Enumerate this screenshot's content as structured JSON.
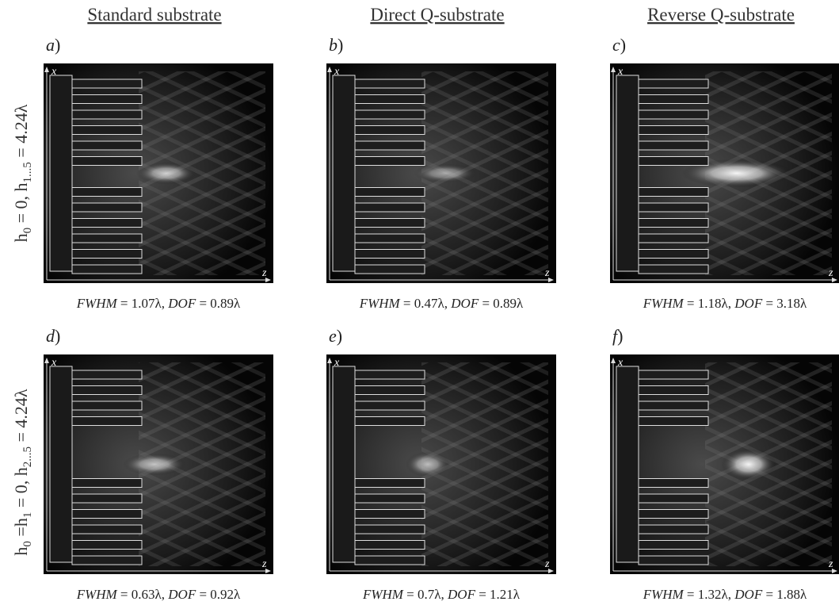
{
  "columns": [
    "Standard substrate",
    "Direct Q-substrate",
    "Reverse Q-substrate"
  ],
  "row_labels": [
    [
      "h",
      "0",
      " = 0, h",
      "1...5",
      " = 4.24λ"
    ],
    [
      "h",
      "0",
      " =h",
      "1",
      " = 0, h",
      "2...5",
      " = 4.24λ"
    ]
  ],
  "axes": {
    "x": "x",
    "z": "z"
  },
  "panels": [
    {
      "letter": "a",
      "paren": ")",
      "fwhm_label": "FWHM",
      "fwhm": " = 1.07λ, ",
      "dof_label": "DOF",
      "dof": " = 0.89λ"
    },
    {
      "letter": "b",
      "paren": ")",
      "fwhm_label": "FWHM",
      "fwhm": " = 0.47λ, ",
      "dof_label": "DOF",
      "dof": " = 0.89λ"
    },
    {
      "letter": "c",
      "paren": ")",
      "fwhm_label": "FWHM",
      "fwhm": " = 1.18λ, ",
      "dof_label": "DOF",
      "dof": " = 3.18λ"
    },
    {
      "letter": "d",
      "paren": ")",
      "fwhm_label": "FWHM",
      "fwhm": " = 0.63λ, ",
      "dof_label": "DOF",
      "dof": " = 0.92λ"
    },
    {
      "letter": "e",
      "paren": ")",
      "fwhm_label": "FWHM",
      "fwhm": " = 0.7λ, ",
      "dof_label": "DOF",
      "dof": " = 1.21λ"
    },
    {
      "letter": "f",
      "paren": ")",
      "fwhm_label": "FWHM",
      "fwhm": " = 1.32λ, ",
      "dof_label": "DOF",
      "dof": " = 1.88λ"
    }
  ]
}
